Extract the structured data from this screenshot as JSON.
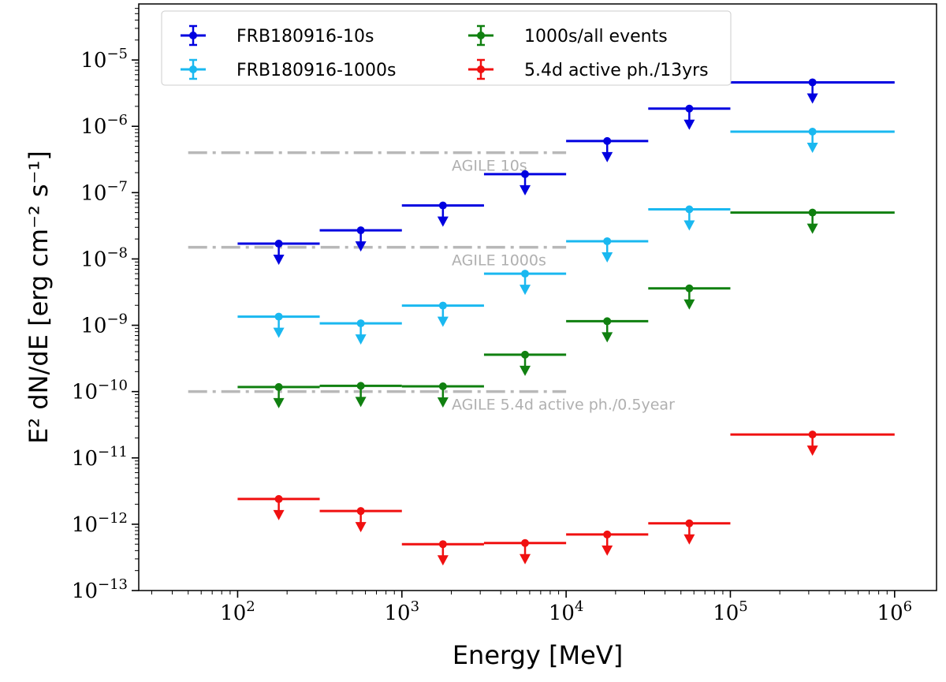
{
  "chart_data": {
    "type": "scatter",
    "xlabel": "Energy [MeV]",
    "ylabel": "E² dN/dE [erg cm⁻² s⁻¹]",
    "xscale": "log",
    "yscale": "log",
    "xlim": [
      25,
      1800000
    ],
    "ylim": [
      1e-13,
      7e-05
    ],
    "x_tick_exponents": [
      2,
      3,
      4,
      5,
      6
    ],
    "y_tick_exponents": [
      -13,
      -12,
      -11,
      -10,
      -9,
      -8,
      -7,
      -6,
      -5
    ],
    "tick_base": "10",
    "legend_position": "top-left",
    "series": [
      {
        "name": "FRB180916-10s",
        "color": "#0000e0",
        "bins": [
          [
            100,
            316
          ],
          [
            316,
            1000
          ],
          [
            1000,
            3162
          ],
          [
            3162,
            10000
          ],
          [
            10000,
            31623
          ],
          [
            31623,
            100000
          ],
          [
            100000,
            1000000
          ]
        ],
        "points": [
          {
            "x": 178,
            "y": 1.7e-08
          },
          {
            "x": 562,
            "y": 2.7e-08
          },
          {
            "x": 1778,
            "y": 6.4e-08
          },
          {
            "x": 5623,
            "y": 1.9e-07
          },
          {
            "x": 17783,
            "y": 6e-07
          },
          {
            "x": 56234,
            "y": 1.85e-06
          },
          {
            "x": 316228,
            "y": 4.6e-06
          }
        ],
        "upper_limit": true
      },
      {
        "name": "FRB180916-1000s",
        "color": "#1ab8f0",
        "bins": [
          [
            100,
            316
          ],
          [
            316,
            1000
          ],
          [
            1000,
            3162
          ],
          [
            3162,
            10000
          ],
          [
            10000,
            31623
          ],
          [
            31623,
            100000
          ],
          [
            100000,
            1000000
          ]
        ],
        "points": [
          {
            "x": 178,
            "y": 1.35e-09
          },
          {
            "x": 562,
            "y": 1.07e-09
          },
          {
            "x": 1778,
            "y": 1.98e-09
          },
          {
            "x": 5623,
            "y": 6e-09
          },
          {
            "x": 17783,
            "y": 1.85e-08
          },
          {
            "x": 56234,
            "y": 5.6e-08
          },
          {
            "x": 316228,
            "y": 8.3e-07
          }
        ],
        "upper_limit": true
      },
      {
        "name": "1000s/all events",
        "color": "#108010",
        "bins": [
          [
            100,
            316
          ],
          [
            316,
            1000
          ],
          [
            1000,
            3162
          ],
          [
            3162,
            10000
          ],
          [
            10000,
            31623
          ],
          [
            31623,
            100000
          ],
          [
            100000,
            1000000
          ]
        ],
        "points": [
          {
            "x": 178,
            "y": 1.17e-10
          },
          {
            "x": 562,
            "y": 1.22e-10
          },
          {
            "x": 1778,
            "y": 1.2e-10
          },
          {
            "x": 5623,
            "y": 3.6e-10
          },
          {
            "x": 17783,
            "y": 1.15e-09
          },
          {
            "x": 56234,
            "y": 3.6e-09
          },
          {
            "x": 316228,
            "y": 5e-08
          }
        ],
        "upper_limit": true
      },
      {
        "name": "5.4d active ph./13yrs",
        "color": "#f01010",
        "bins": [
          [
            100,
            316
          ],
          [
            316,
            1000
          ],
          [
            1000,
            3162
          ],
          [
            3162,
            10000
          ],
          [
            10000,
            31623
          ],
          [
            31623,
            100000
          ],
          [
            100000,
            1000000
          ]
        ],
        "points": [
          {
            "x": 178,
            "y": 2.4e-12
          },
          {
            "x": 562,
            "y": 1.58e-12
          },
          {
            "x": 1778,
            "y": 5e-13
          },
          {
            "x": 5623,
            "y": 5.2e-13
          },
          {
            "x": 17783,
            "y": 7e-13
          },
          {
            "x": 56234,
            "y": 1.03e-12
          },
          {
            "x": 316228,
            "y": 2.25e-11
          }
        ],
        "upper_limit": true
      }
    ],
    "reference_lines": [
      {
        "label": "AGILE 10s",
        "y": 4e-07,
        "x_range": [
          50,
          10000
        ],
        "color": "#b8b8b8"
      },
      {
        "label": "AGILE 1000s",
        "y": 1.5e-08,
        "x_range": [
          50,
          10000
        ],
        "color": "#b8b8b8"
      },
      {
        "label": "AGILE 5.4d active ph./0.5year",
        "y": 1e-10,
        "x_range": [
          50,
          10000
        ],
        "color": "#b8b8b8"
      }
    ]
  }
}
